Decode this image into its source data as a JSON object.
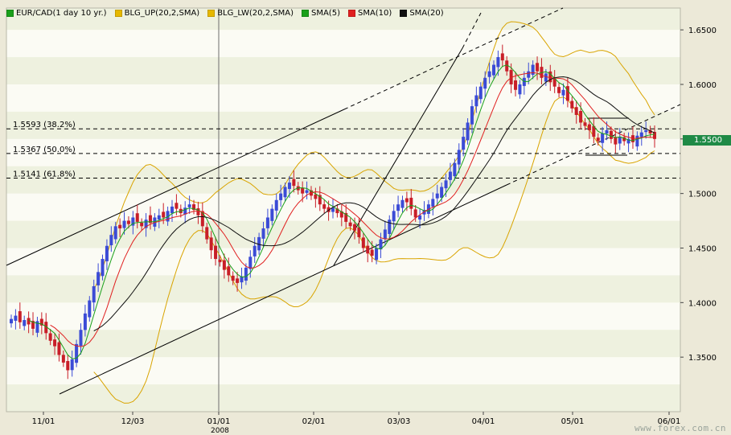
{
  "legend": [
    {
      "label": "EUR/CAD(1 day  10 yr.)",
      "color": "#1aa01a"
    },
    {
      "label": "BLG_UP(20,2,SMA)",
      "color": "#e6b800"
    },
    {
      "label": "BLG_LW(20,2,SMA)",
      "color": "#e6b800"
    },
    {
      "label": "SMA(5)",
      "color": "#1aa01a"
    },
    {
      "label": "SMA(10)",
      "color": "#e02020"
    },
    {
      "label": "SMA(20)",
      "color": "#101010"
    }
  ],
  "last_price": "1.5500",
  "watermark": "www.forex.com.cn",
  "year_label": "2008",
  "colors": {
    "up": "#3b4bd6",
    "down": "#c81e28",
    "boll": "#d9a400",
    "sma5": "#1aa01a",
    "sma10": "#e02020",
    "sma20": "#101010",
    "price_tag": "#1f8a46"
  },
  "chart_data": {
    "type": "candlestick",
    "title": "",
    "xlabel": "",
    "ylabel": "",
    "ylim": [
      1.3,
      1.67
    ],
    "y_ticks": [
      "1.3500",
      "1.4000",
      "1.4500",
      "1.5000",
      "1.5500",
      "1.6000",
      "1.6500"
    ],
    "x_ticks": [
      "11/01",
      "12/03",
      "01/01",
      "02/01",
      "03/03",
      "04/01",
      "05/01",
      "06/01"
    ],
    "grid": "horizontal bands",
    "legend_placement": "top-left",
    "fib_levels": [
      {
        "label": "1.5593 (38.2%)",
        "value": 1.5593
      },
      {
        "label": "1.5367 (50.0%)",
        "value": 1.5367
      },
      {
        "label": "1.5141 (61.8%)",
        "value": 1.5141
      }
    ],
    "closes": [
      1.385,
      1.388,
      1.382,
      1.384,
      1.38,
      1.376,
      1.383,
      1.379,
      1.372,
      1.365,
      1.36,
      1.352,
      1.345,
      1.338,
      1.348,
      1.362,
      1.375,
      1.39,
      1.402,
      1.415,
      1.428,
      1.44,
      1.452,
      1.462,
      1.47,
      1.468,
      1.475,
      1.472,
      1.478,
      1.474,
      1.47,
      1.476,
      1.473,
      1.478,
      1.48,
      1.478,
      1.484,
      1.488,
      1.486,
      1.482,
      1.487,
      1.49,
      1.485,
      1.48,
      1.47,
      1.458,
      1.448,
      1.44,
      1.437,
      1.43,
      1.425,
      1.42,
      1.418,
      1.424,
      1.432,
      1.442,
      1.452,
      1.46,
      1.468,
      1.478,
      1.486,
      1.494,
      1.5,
      1.506,
      1.51,
      1.507,
      1.503,
      1.5,
      1.503,
      1.498,
      1.495,
      1.49,
      1.486,
      1.483,
      1.487,
      1.482,
      1.478,
      1.474,
      1.47,
      1.466,
      1.46,
      1.45,
      1.445,
      1.443,
      1.45,
      1.458,
      1.467,
      1.476,
      1.484,
      1.49,
      1.494,
      1.492,
      1.486,
      1.478,
      1.48,
      1.485,
      1.49,
      1.495,
      1.5,
      1.506,
      1.512,
      1.52,
      1.528,
      1.54,
      1.552,
      1.565,
      1.58,
      1.59,
      1.598,
      1.606,
      1.612,
      1.618,
      1.625,
      1.622,
      1.612,
      1.6,
      1.595,
      1.6,
      1.606,
      1.612,
      1.618,
      1.612,
      1.606,
      1.61,
      1.602,
      1.598,
      1.592,
      1.595,
      1.585,
      1.578,
      1.572,
      1.565,
      1.562,
      1.558,
      1.552,
      1.548,
      1.555,
      1.558,
      1.55,
      1.545,
      1.552,
      1.548,
      1.55,
      1.547,
      1.553,
      1.556,
      1.558,
      1.555,
      1.55
    ]
  }
}
